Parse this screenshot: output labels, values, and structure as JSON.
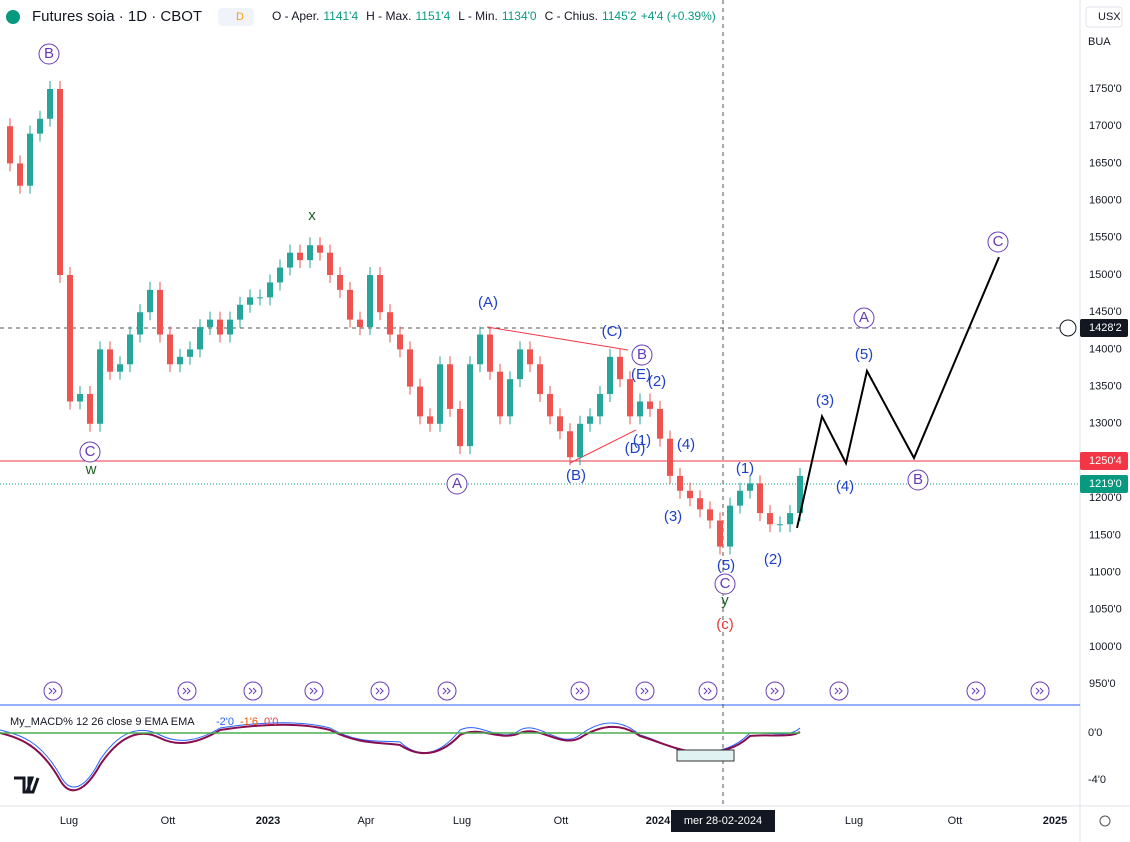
{
  "header": {
    "title": "Futures soia · 1D · CBOT",
    "badge": "D",
    "ohlc": [
      {
        "label": "O - Aper.",
        "value": "1141'4"
      },
      {
        "label": "H - Max.",
        "value": "1151'4"
      },
      {
        "label": "L - Min.",
        "value": "1134'0"
      },
      {
        "label": "C - Chius.",
        "value": "1145'2"
      }
    ],
    "change": "+4'4 (+0.39%)"
  },
  "toolbar": {
    "currency": "USX",
    "unit": "BUA"
  },
  "price_axis": {
    "labels": [
      "1750'0",
      "1700'0",
      "1650'0",
      "1600'0",
      "1550'0",
      "1500'0",
      "1450'0",
      "1400'0",
      "1350'0",
      "1300'0",
      "1250'0",
      "1200'0",
      "1150'0",
      "1100'0",
      "1050'0",
      "1000'0",
      "950'0"
    ],
    "badges": [
      {
        "text": "1428'2",
        "color": "#131722"
      },
      {
        "text": "1250'4",
        "color": "#f23645"
      },
      {
        "text": "1219'0",
        "color": "#089981"
      }
    ]
  },
  "time_axis": {
    "labels": [
      "Lug",
      "Ott",
      "2023",
      "Apr",
      "Lug",
      "Ott",
      "2024",
      "Lug",
      "Ott",
      "2025"
    ],
    "cursor": "mer 28-02-2024"
  },
  "price": {
    "values": [
      1700,
      1650,
      1620,
      1690,
      1710,
      1750,
      1500,
      1330,
      1340,
      1300,
      1400,
      1370,
      1380,
      1420,
      1450,
      1480,
      1420,
      1380,
      1390,
      1400,
      1430,
      1440,
      1420,
      1440,
      1460,
      1470,
      1470,
      1490,
      1510,
      1530,
      1520,
      1540,
      1530,
      1500,
      1480,
      1440,
      1430,
      1500,
      1450,
      1420,
      1400,
      1350,
      1310,
      1300,
      1380,
      1320,
      1270,
      1380,
      1420,
      1370,
      1310,
      1360,
      1400,
      1380,
      1340,
      1310,
      1290,
      1255,
      1300,
      1310,
      1340,
      1390,
      1360,
      1310,
      1330,
      1320,
      1280,
      1230,
      1210,
      1200,
      1185,
      1170,
      1135,
      1190,
      1210,
      1220,
      1180,
      1165,
      1165,
      1180,
      1230
    ]
  },
  "projection": {
    "values": [
      1160,
      1310,
      1247,
      1371,
      1254,
      1524
    ]
  },
  "waves": [
    {
      "text": "B",
      "color": "#673ab7"
    },
    {
      "text": "x",
      "color": "#1b5e20"
    },
    {
      "text": "C",
      "color": "#673ab7"
    },
    {
      "text": "w",
      "color": "#1b5e20"
    },
    {
      "text": "(A)",
      "color": "#1e40c8"
    },
    {
      "text": "A",
      "color": "#673ab7"
    },
    {
      "text": "(B)",
      "color": "#1e40c8"
    },
    {
      "text": "(C)",
      "color": "#1e40c8"
    },
    {
      "text": "B",
      "color": "#673ab7"
    },
    {
      "text": "(E)",
      "color": "#1e40c8"
    },
    {
      "text": "(2)",
      "color": "#1e40c8"
    },
    {
      "text": "(1)",
      "color": "#1e40c8"
    },
    {
      "text": "(D)",
      "color": "#1e40c8"
    },
    {
      "text": "(4)",
      "color": "#1e40c8"
    },
    {
      "text": "(3)",
      "color": "#1e40c8"
    },
    {
      "text": "(5)",
      "color": "#1e40c8"
    },
    {
      "text": "C",
      "color": "#673ab7"
    },
    {
      "text": "y",
      "color": "#1b5e20"
    },
    {
      "text": "(c)",
      "color": "#e53935"
    },
    {
      "text": "(1)",
      "color": "#1e40c8"
    },
    {
      "text": "(2)",
      "color": "#1e40c8"
    },
    {
      "text": "(3)",
      "color": "#1e40c8"
    },
    {
      "text": "(4)",
      "color": "#1e40c8"
    },
    {
      "text": "(5)",
      "color": "#1e40c8"
    },
    {
      "text": "A",
      "color": "#673ab7"
    },
    {
      "text": "B",
      "color": "#673ab7"
    },
    {
      "text": "C",
      "color": "#673ab7"
    }
  ],
  "macd": {
    "title": "My_MACD% 12 26 close 9 EMA EMA",
    "values": [
      "-2'0",
      "-1'6",
      "0'0"
    ],
    "axis": [
      "0'0",
      "-4'0"
    ]
  }
}
